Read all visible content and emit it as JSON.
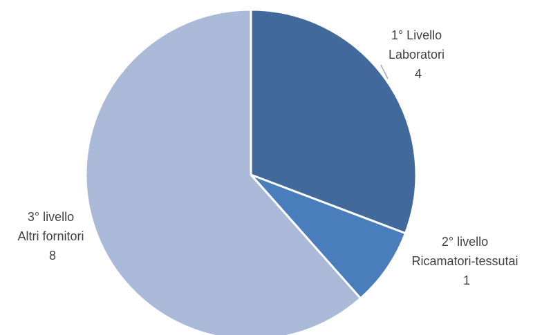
{
  "chart_data": {
    "type": "pie",
    "title": "",
    "series": [
      {
        "values": [
          4,
          1,
          8
        ]
      }
    ],
    "slices": [
      {
        "label_line1": "1° Livello",
        "label_line2": "Laboratori",
        "value": 4,
        "value_text": "4",
        "color": "#41699B"
      },
      {
        "label_line1": "2° livello",
        "label_line2": "Ricamatori-tessutai",
        "value": 1,
        "value_text": "1",
        "color": "#4A7DBB"
      },
      {
        "label_line1": "3° livello",
        "label_line2": "Altri fornitori",
        "value": 8,
        "value_text": "8",
        "color": "#AAB9D7"
      }
    ],
    "start": "12 o'clock",
    "direction": "clockwise",
    "legend": "none",
    "leader_line_color": "#A6A6A6",
    "slice_border_color": "#FFFFFF"
  }
}
